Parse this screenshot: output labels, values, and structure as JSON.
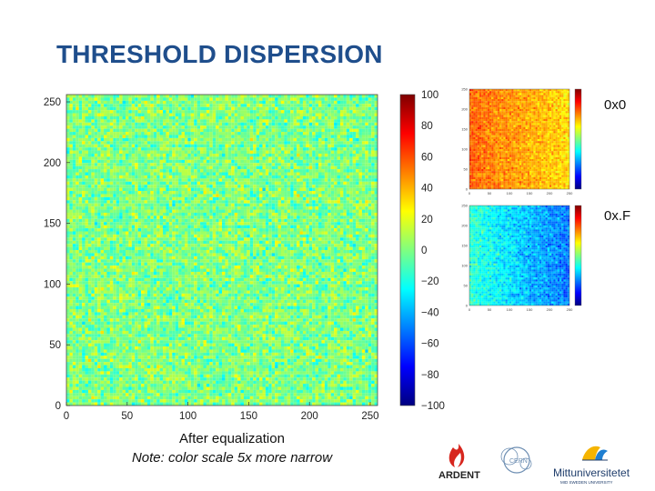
{
  "slide": {
    "title": "THRESHOLD DISPERSION",
    "caption_line1": "After equalization",
    "caption_line2": "Note: color scale 5x more narrow",
    "inset_label_1": "0x0",
    "inset_label_2": "0x.F",
    "logos": {
      "ardent": "ARDENT",
      "cern": "CERN",
      "mittuniversitetet": "Mittuniversitetet",
      "mittuniversitetet_sub": "MID SWEDEN UNIVERSITY"
    }
  },
  "chart_data": [
    {
      "type": "heatmap",
      "title": "",
      "xlabel": "",
      "ylabel": "",
      "xlim": [
        0,
        256
      ],
      "ylim": [
        0,
        256
      ],
      "x_ticks": [
        "0",
        "50",
        "100",
        "150",
        "200",
        "250"
      ],
      "y_ticks": [
        "0",
        "50",
        "100",
        "150",
        "200",
        "250"
      ],
      "colorbar": {
        "range": [
          -100,
          100
        ],
        "ticks": [
          "100",
          "80",
          "60",
          "40",
          "20",
          "0",
          "−20",
          "−40",
          "−60",
          "−80",
          "−100"
        ]
      },
      "colormap": "jet",
      "description_of_values": "uniform noise centered near 0"
    },
    {
      "type": "heatmap",
      "label": "0x0",
      "colormap": "jet",
      "gradient": "warmer (orange/red) toward left, lower values toward right"
    },
    {
      "type": "heatmap",
      "label": "0x.F",
      "colormap": "jet",
      "gradient": "cyan/green toward left, bluer toward right"
    }
  ]
}
